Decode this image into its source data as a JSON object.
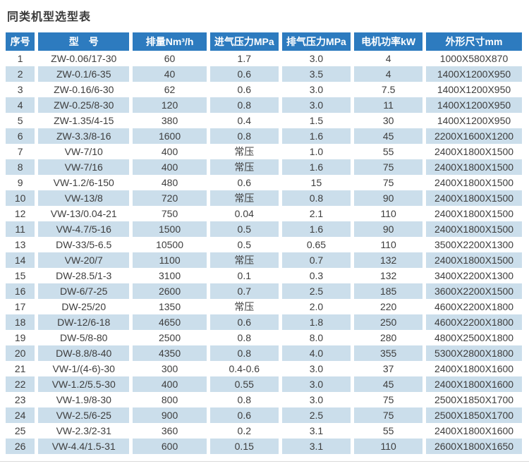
{
  "page": {
    "title": "同类机型选型表"
  },
  "colors": {
    "header_bg": "#2d7bbf",
    "header_text": "#ffffff",
    "stripe": "#cbdeeb",
    "body_text": "#3d3d3d",
    "page_bg": "#ffffff"
  },
  "table": {
    "columns": [
      "序号",
      "型　号",
      "排量Nm³/h",
      "进气压力MPa",
      "排气压力MPa",
      "电机功率kW",
      "外形尺寸mm"
    ],
    "rows": [
      [
        "1",
        "ZW-0.06/17-30",
        "60",
        "1.7",
        "3.0",
        "4",
        "1000X580X870"
      ],
      [
        "2",
        "ZW-0.1/6-35",
        "40",
        "0.6",
        "3.5",
        "4",
        "1400X1200X950"
      ],
      [
        "3",
        "ZW-0.16/6-30",
        "62",
        "0.6",
        "3.0",
        "7.5",
        "1400X1200X950"
      ],
      [
        "4",
        "ZW-0.25/8-30",
        "120",
        "0.8",
        "3.0",
        "11",
        "1400X1200X950"
      ],
      [
        "5",
        "ZW-1.35/4-15",
        "380",
        "0.4",
        "1.5",
        "30",
        "1400X1200X950"
      ],
      [
        "6",
        "ZW-3.3/8-16",
        "1600",
        "0.8",
        "1.6",
        "45",
        "2200X1600X1200"
      ],
      [
        "7",
        "VW-7/10",
        "400",
        "常压",
        "1.0",
        "55",
        "2400X1800X1500"
      ],
      [
        "8",
        "VW-7/16",
        "400",
        "常压",
        "1.6",
        "75",
        "2400X1800X1500"
      ],
      [
        "9",
        "VW-1.2/6-150",
        "480",
        "0.6",
        "15",
        "75",
        "2400X1800X1500"
      ],
      [
        "10",
        "VW-13/8",
        "720",
        "常压",
        "0.8",
        "90",
        "2400X1800X1500"
      ],
      [
        "12",
        "VW-13/0.04-21",
        "750",
        "0.04",
        "2.1",
        "110",
        "2400X1800X1500"
      ],
      [
        "11",
        "VW-4.7/5-16",
        "1500",
        "0.5",
        "1.6",
        "90",
        "2400X1800X1500"
      ],
      [
        "13",
        "DW-33/5-6.5",
        "10500",
        "0.5",
        "0.65",
        "110",
        "3500X2200X1300"
      ],
      [
        "14",
        "VW-20/7",
        "1100",
        "常压",
        "0.7",
        "132",
        "2400X1800X1500"
      ],
      [
        "15",
        "DW-28.5/1-3",
        "3100",
        "0.1",
        "0.3",
        "132",
        "3400X2200X1300"
      ],
      [
        "16",
        "DW-6/7-25",
        "2600",
        "0.7",
        "2.5",
        "185",
        "3600X2200X1500"
      ],
      [
        "17",
        "DW-25/20",
        "1350",
        "常压",
        "2.0",
        "220",
        "4600X2200X1800"
      ],
      [
        "18",
        "DW-12/6-18",
        "4650",
        "0.6",
        "1.8",
        "250",
        "4600X2200X1800"
      ],
      [
        "19",
        "DW-5/8-80",
        "2500",
        "0.8",
        "8.0",
        "280",
        "4800X2500X1800"
      ],
      [
        "20",
        "DW-8.8/8-40",
        "4350",
        "0.8",
        "4.0",
        "355",
        "5300X2800X1800"
      ],
      [
        "21",
        "VW-1/(4-6)-30",
        "300",
        "0.4-0.6",
        "3.0",
        "37",
        "2400X1800X1600"
      ],
      [
        "22",
        "VW-1.2/5.5-30",
        "400",
        "0.55",
        "3.0",
        "45",
        "2400X1800X1600"
      ],
      [
        "23",
        "VW-1.9/8-30",
        "800",
        "0.8",
        "3.0",
        "75",
        "2500X1850X1700"
      ],
      [
        "24",
        "VW-2.5/6-25",
        "900",
        "0.6",
        "2.5",
        "75",
        "2500X1850X1700"
      ],
      [
        "25",
        "VW-2.3/2-31",
        "360",
        "0.2",
        "3.1",
        "55",
        "2400X1800X1600"
      ],
      [
        "26",
        "VW-4.4/1.5-31",
        "600",
        "0.15",
        "3.1",
        "110",
        "2600X1800X1650"
      ]
    ]
  }
}
